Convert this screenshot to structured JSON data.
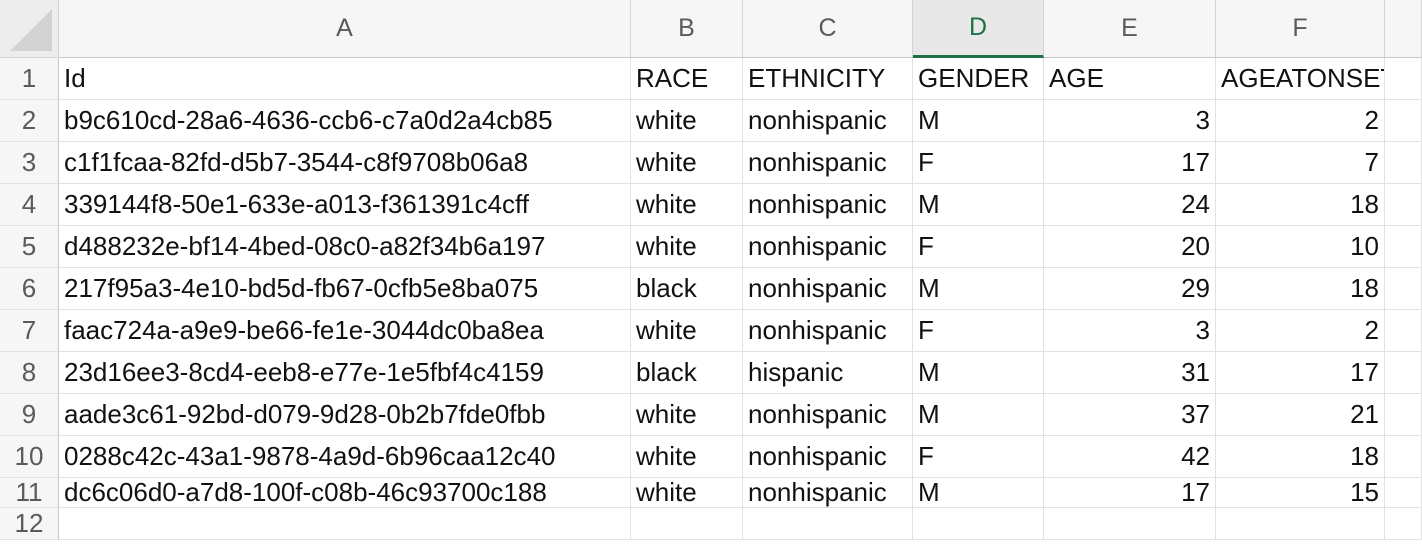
{
  "columns": [
    "A",
    "B",
    "C",
    "D",
    "E",
    "F",
    ""
  ],
  "active_column": "D",
  "row_numbers": [
    "1",
    "2",
    "3",
    "4",
    "5",
    "6",
    "7",
    "8",
    "9",
    "10",
    "11",
    "12"
  ],
  "header_row": [
    "Id",
    "RACE",
    "ETHNICITY",
    "GENDER",
    "AGE",
    "AGEATONSET",
    ""
  ],
  "rows": [
    [
      "b9c610cd-28a6-4636-ccb6-c7a0d2a4cb85",
      "white",
      "nonhispanic",
      "M",
      "3",
      "2",
      ""
    ],
    [
      "c1f1fcaa-82fd-d5b7-3544-c8f9708b06a8",
      "white",
      "nonhispanic",
      "F",
      "17",
      "7",
      ""
    ],
    [
      "339144f8-50e1-633e-a013-f361391c4cff",
      "white",
      "nonhispanic",
      "M",
      "24",
      "18",
      ""
    ],
    [
      "d488232e-bf14-4bed-08c0-a82f34b6a197",
      "white",
      "nonhispanic",
      "F",
      "20",
      "10",
      ""
    ],
    [
      "217f95a3-4e10-bd5d-fb67-0cfb5e8ba075",
      "black",
      "nonhispanic",
      "M",
      "29",
      "18",
      ""
    ],
    [
      "faac724a-a9e9-be66-fe1e-3044dc0ba8ea",
      "white",
      "nonhispanic",
      "F",
      "3",
      "2",
      ""
    ],
    [
      "23d16ee3-8cd4-eeb8-e77e-1e5fbf4c4159",
      "black",
      "hispanic",
      "M",
      "31",
      "17",
      ""
    ],
    [
      "aade3c61-92bd-d079-9d28-0b2b7fde0fbb",
      "white",
      "nonhispanic",
      "M",
      "37",
      "21",
      ""
    ],
    [
      "0288c42c-43a1-9878-4a9d-6b96caa12c40",
      "white",
      "nonhispanic",
      "F",
      "42",
      "18",
      ""
    ],
    [
      "dc6c06d0-a7d8-100f-c08b-46c93700c188",
      "white",
      "nonhispanic",
      "M",
      "17",
      "15",
      ""
    ]
  ],
  "numeric_columns": [
    4,
    5
  ],
  "colors": {
    "active_header": "#1e7145",
    "header_bg": "#f6f6f6",
    "grid_line": "#e2e2e2"
  }
}
